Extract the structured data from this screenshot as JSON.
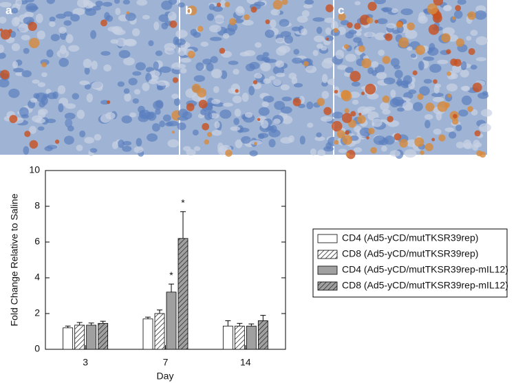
{
  "panels": [
    "a",
    "b",
    "c"
  ],
  "chart_data": {
    "type": "bar",
    "xlabel": "Day",
    "ylabel": "Fold Change Relative to Saline",
    "categories": [
      "3",
      "7",
      "14"
    ],
    "ylim": [
      0,
      10
    ],
    "yticks": [
      0,
      2,
      4,
      6,
      8,
      10
    ],
    "series": [
      {
        "name": "CD4 (Ad5-yCD/mutTKSR39rep)",
        "color": "#ffffff",
        "hatch": false,
        "values": [
          1.2,
          1.7,
          1.3
        ],
        "errors": [
          0.1,
          0.1,
          0.3
        ],
        "significance": [
          null,
          null,
          null
        ]
      },
      {
        "name": "CD8 (Ad5-yCD/mutTKSR39rep)",
        "color": "#ffffff",
        "hatch": true,
        "values": [
          1.35,
          2.0,
          1.3
        ],
        "errors": [
          0.15,
          0.2,
          0.15
        ],
        "significance": [
          null,
          null,
          null
        ]
      },
      {
        "name": "CD4 (Ad5-yCD/mutTKSR39rep-mIL12)",
        "color": "#a0a0a0",
        "hatch": false,
        "values": [
          1.35,
          3.2,
          1.3
        ],
        "errors": [
          0.12,
          0.45,
          0.12
        ],
        "significance": [
          null,
          "*",
          null
        ]
      },
      {
        "name": "CD8 (Ad5-yCD/mutTKSR39rep-mIL12)",
        "color": "#a0a0a0",
        "hatch": true,
        "values": [
          1.45,
          6.2,
          1.6
        ],
        "errors": [
          0.12,
          1.5,
          0.3
        ],
        "significance": [
          null,
          "*",
          null
        ]
      }
    ]
  }
}
